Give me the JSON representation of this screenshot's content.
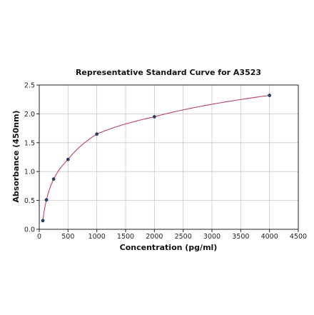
{
  "chart_data": {
    "type": "scatter",
    "title": "Representative Standard Curve for A3523",
    "xlabel": "Concentration (pg/ml)",
    "ylabel": "Absorbance (450nm)",
    "xlim": [
      0,
      4500
    ],
    "ylim": [
      0,
      2.5
    ],
    "xticks": [
      "0",
      "500",
      "1000",
      "1500",
      "2000",
      "2500",
      "3000",
      "3500",
      "4000",
      "4500"
    ],
    "yticks": [
      "0.0",
      "0.5",
      "1.0",
      "1.5",
      "2.0",
      "2.5"
    ],
    "grid": true,
    "fit_curve": true,
    "colors": {
      "points": "#2b3f6b",
      "curve": "#c0506a",
      "grid": "#c8c8c8"
    },
    "series": [
      {
        "x": [
          62.5,
          125,
          250,
          500,
          1000,
          2000,
          4000
        ],
        "y": [
          0.15,
          0.51,
          0.87,
          1.21,
          1.65,
          1.95,
          2.32
        ]
      }
    ]
  }
}
